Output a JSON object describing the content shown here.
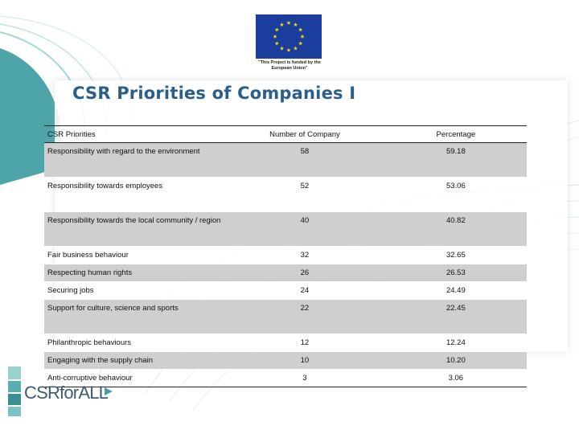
{
  "title": "CSR Priorities of Companies I",
  "eu_caption": "\"This Project is funded by the European Union\"",
  "logo_text": "CSRforALL",
  "table": {
    "headers": [
      "CSR Priorities",
      "Number of Company",
      "Percentage"
    ],
    "rows": [
      {
        "priority": "Responsibility with regard to the environment",
        "count": "58",
        "percentage": "59.18"
      },
      {
        "priority": "Responsibility towards employees",
        "count": "52",
        "percentage": "53.06"
      },
      {
        "priority": "Responsibility towards the local community / region",
        "count": "40",
        "percentage": "40.82"
      },
      {
        "priority": "Fair business behaviour",
        "count": "32",
        "percentage": "32.65"
      },
      {
        "priority": "Respecting human rights",
        "count": "26",
        "percentage": "26.53"
      },
      {
        "priority": "Securing jobs",
        "count": "24",
        "percentage": "24.49"
      },
      {
        "priority": "Support for culture, science and sports",
        "count": "22",
        "percentage": "22.45"
      },
      {
        "priority": "Philanthropic behaviours",
        "count": "12",
        "percentage": "12.24"
      },
      {
        "priority": "Engaging with the supply chain",
        "count": "10",
        "percentage": "10.20"
      },
      {
        "priority": "Anti-corruptive behaviour",
        "count": "3",
        "percentage": "3.06"
      }
    ]
  },
  "colors": {
    "title": "#2a5e8c",
    "row_shade": "#cfcfcf",
    "eu_blue": "#1a3d9e",
    "eu_star": "#ffdd00",
    "swirl": "#3a9aa0",
    "logo_teal": "#4a9ea0"
  }
}
